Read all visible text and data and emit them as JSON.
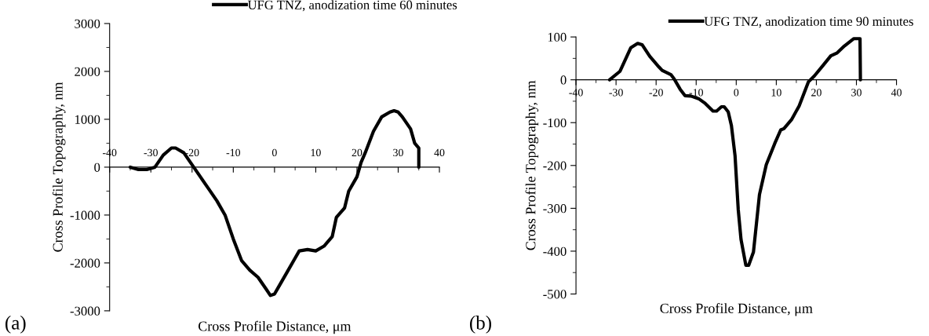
{
  "chart_data": [
    {
      "type": "line",
      "xlabel": "Cross Profile Distance, μm",
      "ylabel": "Cross Profile Topography, nm",
      "annotations": [
        "(a)"
      ],
      "legend": "top right",
      "grid": false,
      "line_style": "solid",
      "marker": "none",
      "xlim": [
        -40,
        40
      ],
      "xticks": [
        -40,
        -30,
        -20,
        -10,
        0,
        10,
        20,
        30,
        40
      ],
      "ylim": [
        -3000,
        3000
      ],
      "yticks": [
        -3000,
        -2000,
        -1000,
        0,
        1000,
        2000,
        3000
      ],
      "series": [
        {
          "name": "UFG TNZ, anodization time 60 minutes",
          "color": "#000000",
          "x": [
            -35,
            -33,
            -31,
            -29,
            -27,
            -25,
            -24,
            -22,
            -20,
            -18,
            -16,
            -14,
            -12,
            -10,
            -8,
            -6,
            -4,
            -2,
            -1,
            0,
            1,
            3,
            5,
            6,
            8,
            10,
            12,
            14,
            15,
            17,
            18,
            20,
            21,
            22,
            24,
            26,
            28,
            29,
            30,
            31,
            33,
            34,
            35,
            35
          ],
          "values": [
            0,
            -50,
            -50,
            0,
            250,
            400,
            400,
            300,
            50,
            -200,
            -450,
            -700,
            -1000,
            -1500,
            -1950,
            -2150,
            -2300,
            -2550,
            -2680,
            -2650,
            -2500,
            -2200,
            -1900,
            -1750,
            -1720,
            -1750,
            -1650,
            -1450,
            -1050,
            -850,
            -500,
            -200,
            100,
            300,
            750,
            1050,
            1150,
            1180,
            1150,
            1050,
            800,
            500,
            400,
            0
          ]
        }
      ]
    },
    {
      "type": "line",
      "xlabel": "Cross Profile Distance, μm",
      "ylabel": "Cross Profile Topography, nm",
      "annotations": [
        "(b)"
      ],
      "legend": "top right",
      "grid": false,
      "line_style": "solid",
      "marker": "none",
      "xlim": [
        -40,
        40
      ],
      "xticks": [
        -40,
        -30,
        -20,
        -10,
        0,
        10,
        20,
        30,
        40
      ],
      "ylim": [
        -500,
        100
      ],
      "yticks": [
        -500,
        -400,
        -300,
        -200,
        -100,
        0,
        100
      ],
      "series": [
        {
          "name": "UFG TNZ, anodization time 90 minutes",
          "color": "#000000",
          "x": [
            -31.6,
            -29,
            -26.3,
            -24.6,
            -23.5,
            -21.6,
            -19.3,
            -18.5,
            -16.3,
            -15.5,
            -14,
            -12.8,
            -11.3,
            -9.4,
            -7.9,
            -5.8,
            -4.9,
            -3.7,
            -3,
            -2,
            -1.2,
            -0.3,
            0.5,
            1.2,
            2.4,
            3.1,
            4.3,
            5.8,
            7.5,
            9.6,
            11.1,
            11.9,
            13.8,
            15.7,
            18,
            19.5,
            21.7,
            23.6,
            25.2,
            27,
            29.3,
            30.9,
            31
          ],
          "values": [
            0,
            20,
            75,
            85,
            82,
            55,
            30,
            22,
            12,
            2,
            -22,
            -37,
            -38,
            -44,
            -54,
            -73,
            -73,
            -63,
            -63,
            -75,
            -107,
            -177,
            -303,
            -373,
            -433,
            -433,
            -402,
            -268,
            -198,
            -149,
            -117,
            -114,
            -93,
            -61,
            -5,
            9,
            34,
            56,
            63,
            79,
            96,
            96,
            0
          ]
        }
      ]
    }
  ]
}
